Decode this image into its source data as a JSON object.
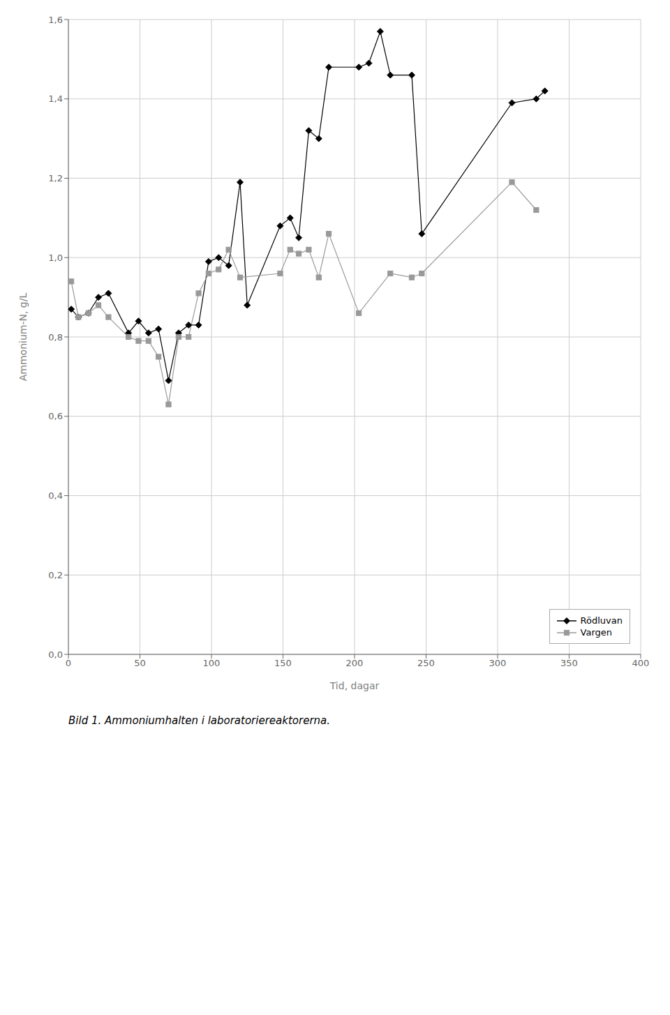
{
  "chart_data": {
    "type": "line",
    "title": "Bild 1. Ammoniumhalten i laboratoriereaktorerna.",
    "xlabel": "Tid, dagar",
    "ylabel": "Ammonium-N, g/L",
    "xlim": [
      0,
      400
    ],
    "ylim": [
      0.0,
      1.6
    ],
    "xticks": [
      0,
      50,
      100,
      150,
      200,
      250,
      300,
      350,
      400
    ],
    "yticks": [
      {
        "value": 0.0,
        "label": "0,0"
      },
      {
        "value": 0.2,
        "label": "0,2"
      },
      {
        "value": 0.4,
        "label": "0,4"
      },
      {
        "value": 0.6,
        "label": "0,6"
      },
      {
        "value": 0.8,
        "label": "0,8"
      },
      {
        "value": 1.0,
        "label": "1,0"
      },
      {
        "value": 1.2,
        "label": "1,2"
      },
      {
        "value": 1.4,
        "label": "1,4"
      },
      {
        "value": 1.6,
        "label": "1,6"
      }
    ],
    "grid": true,
    "legend": "lower right",
    "series": [
      {
        "name": "Rödluvan",
        "color": "#000000",
        "marker": "diamond",
        "x": [
          2,
          7,
          14,
          21,
          28,
          42,
          49,
          56,
          63,
          70,
          77,
          84,
          91,
          98,
          105,
          112,
          120,
          125,
          148,
          155,
          161,
          168,
          175,
          182,
          203,
          210,
          218,
          225,
          240,
          247,
          310,
          327,
          333
        ],
        "values": [
          0.87,
          0.85,
          0.86,
          0.9,
          0.91,
          0.81,
          0.84,
          0.81,
          0.82,
          0.69,
          0.81,
          0.83,
          0.83,
          0.99,
          1.0,
          0.98,
          1.19,
          0.88,
          1.08,
          1.1,
          1.05,
          1.32,
          1.3,
          1.48,
          1.48,
          1.49,
          1.57,
          1.46,
          1.46,
          1.06,
          1.39,
          1.4,
          1.42
        ]
      },
      {
        "name": "Vargen",
        "color": "#999999",
        "marker": "square",
        "x": [
          2,
          7,
          14,
          21,
          28,
          42,
          49,
          56,
          63,
          70,
          77,
          84,
          91,
          98,
          105,
          112,
          120,
          148,
          155,
          161,
          168,
          175,
          182,
          203,
          225,
          240,
          247,
          310,
          327
        ],
        "values": [
          0.94,
          0.85,
          0.86,
          0.88,
          0.85,
          0.8,
          0.79,
          0.79,
          0.75,
          0.63,
          0.8,
          0.8,
          0.91,
          0.96,
          0.97,
          1.02,
          0.95,
          0.96,
          1.02,
          1.01,
          1.02,
          0.95,
          1.06,
          0.86,
          0.96,
          0.95,
          0.96,
          1.19,
          1.12
        ]
      }
    ]
  }
}
